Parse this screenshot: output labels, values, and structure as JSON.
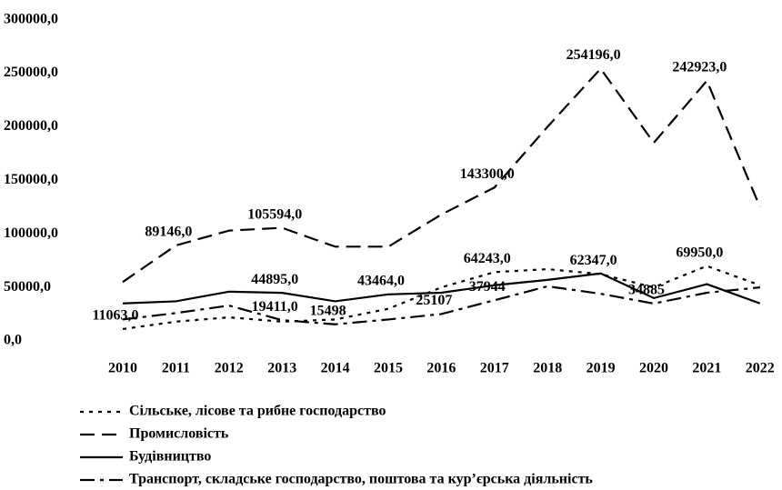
{
  "chart_data": {
    "type": "line",
    "categories": [
      "2010",
      "2011",
      "2012",
      "2013",
      "2014",
      "2015",
      "2016",
      "2017",
      "2018",
      "2019",
      "2020",
      "2021",
      "2022"
    ],
    "ylim": [
      0,
      300000
    ],
    "yticks": [
      {
        "value": 0,
        "label": "0,0"
      },
      {
        "value": 50000,
        "label": "50000,0"
      },
      {
        "value": 100000,
        "label": "100000,0"
      },
      {
        "value": 150000,
        "label": "150000,0"
      },
      {
        "value": 200000,
        "label": "200000,0"
      },
      {
        "value": 250000,
        "label": "250000,0"
      },
      {
        "value": 300000,
        "label": "300000,0"
      }
    ],
    "series": [
      {
        "name": "Сільське, лісове та рибне господарство",
        "color": "#000000",
        "style": "dotted",
        "values": [
          11063,
          18000,
          22000,
          18000,
          20000,
          30000,
          50000,
          64243,
          67000,
          62347,
          50000,
          69950,
          52000
        ],
        "value_labels": [
          "11063,0",
          null,
          null,
          null,
          null,
          null,
          null,
          "64243,0",
          null,
          "62347,0",
          null,
          "69950,0",
          null
        ]
      },
      {
        "name": "Промисловість",
        "color": "#000000",
        "style": "dashed",
        "values": [
          55000,
          89146,
          103000,
          105594,
          88000,
          88000,
          118000,
          143300,
          200000,
          254196,
          185000,
          242923,
          125000
        ],
        "value_labels": [
          null,
          "89146,0",
          null,
          "105594,0",
          null,
          null,
          null,
          "143300,0",
          null,
          "254196,0",
          null,
          "242923,0",
          null
        ]
      },
      {
        "name": "Будівництво",
        "color": "#000000",
        "style": "solid",
        "values": [
          35000,
          37000,
          46000,
          44895,
          37000,
          43464,
          45000,
          52000,
          57000,
          63000,
          40000,
          53000,
          35000
        ],
        "value_labels": [
          null,
          null,
          null,
          "44895,0",
          null,
          "43464,0",
          null,
          null,
          null,
          null,
          null,
          null,
          null
        ]
      },
      {
        "name": "Транспорт, складське господарство, поштова та кур’єрська діяльність",
        "color": "#000000",
        "style": "dashdot",
        "values": [
          20000,
          26000,
          33000,
          19411,
          15498,
          20000,
          25107,
          37944,
          51000,
          44000,
          34885,
          45000,
          50000
        ],
        "value_labels": [
          null,
          null,
          null,
          "19411,0",
          "15498",
          null,
          "25107",
          "37944",
          null,
          null,
          "34885",
          null,
          null
        ]
      }
    ]
  }
}
